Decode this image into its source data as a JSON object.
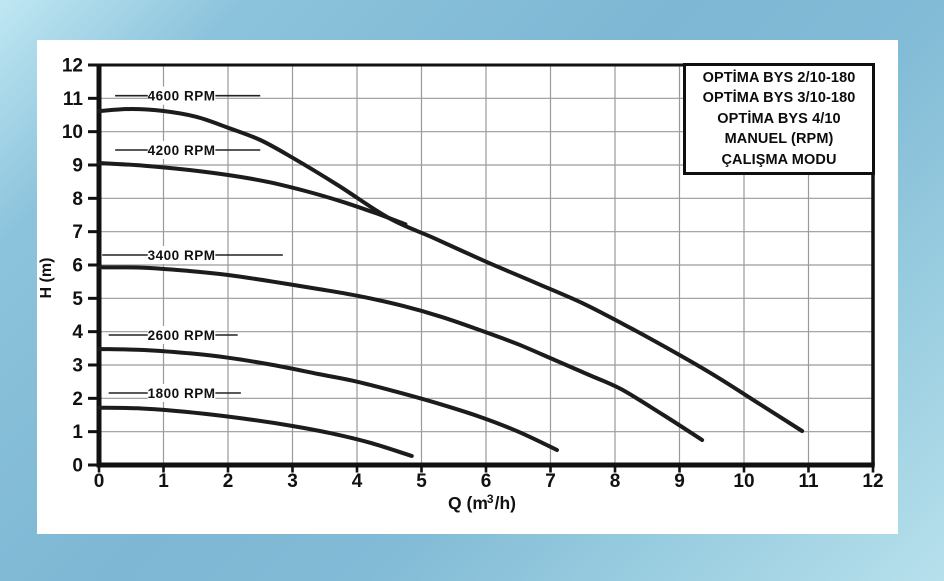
{
  "chart_data": {
    "type": "line",
    "title": "",
    "xlabel": "Q (m³/h)",
    "xlabel_parts": {
      "pre": "Q (m",
      "sup": "3",
      "post": "/h)"
    },
    "ylabel": "H (m)",
    "xlim": [
      0,
      12
    ],
    "ylim": [
      0,
      12
    ],
    "grid": true,
    "x_ticks": [
      "0",
      "1",
      "2",
      "3",
      "4",
      "5",
      "6",
      "7",
      "8",
      "9",
      "10",
      "11",
      "12"
    ],
    "y_ticks": [
      "0",
      "1",
      "2",
      "3",
      "4",
      "5",
      "6",
      "7",
      "8",
      "9",
      "10",
      "11",
      "12"
    ],
    "colors": {
      "curve": "#1c1c1c",
      "grid": "#9a9a9a",
      "axis": "#111111",
      "panel_bg": "#ffffff",
      "text": "#111111"
    },
    "series": [
      {
        "name": "4600 RPM",
        "points": [
          [
            0,
            10.62
          ],
          [
            0.5,
            10.68
          ],
          [
            1,
            10.62
          ],
          [
            1.5,
            10.45
          ],
          [
            2,
            10.12
          ],
          [
            2.5,
            9.75
          ],
          [
            3,
            9.22
          ],
          [
            3.7,
            8.4
          ],
          [
            4.5,
            7.4
          ],
          [
            5.2,
            6.8
          ],
          [
            6,
            6.1
          ],
          [
            6.75,
            5.48
          ],
          [
            7.5,
            4.85
          ],
          [
            8.25,
            4.1
          ],
          [
            9,
            3.3
          ],
          [
            9.6,
            2.62
          ],
          [
            10.25,
            1.82
          ],
          [
            10.9,
            1.02
          ]
        ]
      },
      {
        "name": "4200 RPM",
        "points": [
          [
            0,
            9.06
          ],
          [
            0.7,
            8.98
          ],
          [
            1.4,
            8.85
          ],
          [
            2,
            8.7
          ],
          [
            2.6,
            8.5
          ],
          [
            3.2,
            8.22
          ],
          [
            3.8,
            7.88
          ],
          [
            4.3,
            7.55
          ],
          [
            4.75,
            7.22
          ]
        ]
      },
      {
        "name": "3400 RPM",
        "points": [
          [
            0,
            5.93
          ],
          [
            0.7,
            5.92
          ],
          [
            1.4,
            5.82
          ],
          [
            2,
            5.7
          ],
          [
            2.7,
            5.5
          ],
          [
            3.4,
            5.28
          ],
          [
            4,
            5.08
          ],
          [
            4.7,
            4.78
          ],
          [
            5.3,
            4.45
          ],
          [
            5.9,
            4.05
          ],
          [
            6.5,
            3.62
          ],
          [
            7.1,
            3.12
          ],
          [
            7.6,
            2.7
          ],
          [
            8.1,
            2.27
          ],
          [
            8.75,
            1.5
          ],
          [
            9.35,
            0.75
          ]
        ]
      },
      {
        "name": "2600 RPM",
        "points": [
          [
            0,
            3.48
          ],
          [
            0.7,
            3.45
          ],
          [
            1.4,
            3.35
          ],
          [
            2,
            3.22
          ],
          [
            2.7,
            3.0
          ],
          [
            3.4,
            2.73
          ],
          [
            4,
            2.5
          ],
          [
            4.7,
            2.15
          ],
          [
            5.3,
            1.82
          ],
          [
            5.9,
            1.45
          ],
          [
            6.5,
            1.0
          ],
          [
            7.1,
            0.45
          ]
        ]
      },
      {
        "name": "1800 RPM",
        "points": [
          [
            0,
            1.72
          ],
          [
            0.6,
            1.7
          ],
          [
            1.2,
            1.62
          ],
          [
            1.8,
            1.5
          ],
          [
            2.4,
            1.35
          ],
          [
            3,
            1.17
          ],
          [
            3.6,
            0.95
          ],
          [
            4.2,
            0.67
          ],
          [
            4.85,
            0.27
          ]
        ]
      }
    ],
    "rpm_labels": [
      {
        "text": "4600 RPM",
        "h": 11.08,
        "line_q": [
          0.25,
          2.5
        ],
        "text_q": 1.28
      },
      {
        "text": "4200 RPM",
        "h": 9.45,
        "line_q": [
          0.25,
          2.5
        ],
        "text_q": 1.28
      },
      {
        "text": "3400 RPM",
        "h": 6.3,
        "line_q": [
          0.05,
          2.85
        ],
        "text_q": 1.28
      },
      {
        "text": "2600 RPM",
        "h": 3.9,
        "line_q": [
          0.15,
          2.15
        ],
        "text_q": 1.28
      },
      {
        "text": "1800 RPM",
        "h": 2.16,
        "line_q": [
          0.15,
          2.2
        ],
        "text_q": 1.28
      }
    ],
    "legend_box": {
      "lines": [
        "OPTİMA BYS 2/10-180",
        "OPTİMA BYS 3/10-180",
        "OPTİMA BYS 4/10",
        "MANUEL (RPM)",
        "ÇALIŞMA MODU"
      ]
    }
  }
}
